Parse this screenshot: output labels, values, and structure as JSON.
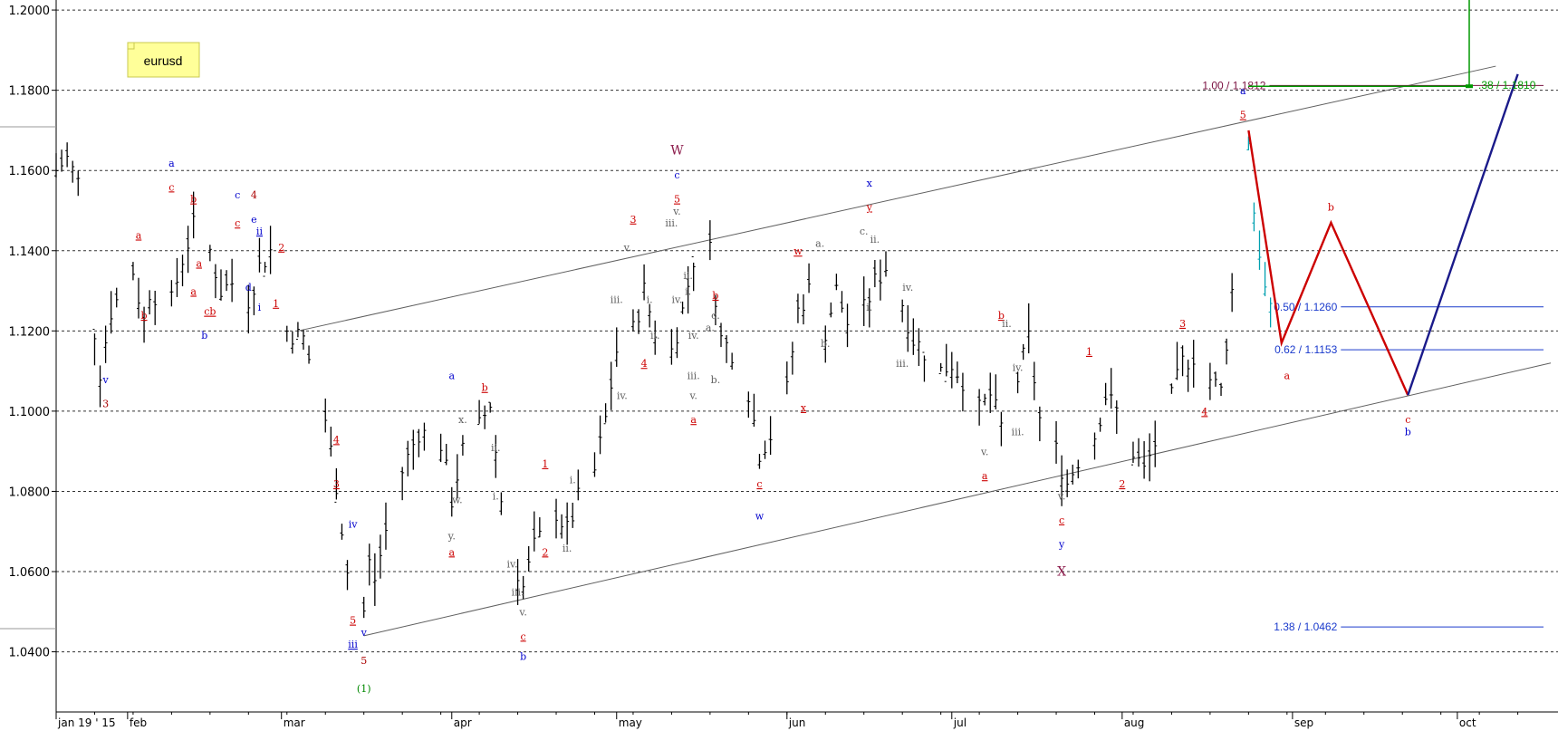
{
  "chart_data": {
    "type": "ohlc",
    "symbol_label": "eurusd",
    "y_axis": {
      "range": [
        1.025,
        1.2025
      ],
      "ticks": [
        "1.0400",
        "1.0600",
        "1.0800",
        "1.1000",
        "1.1200",
        "1.1400",
        "1.1600",
        "1.1800",
        "1.2000"
      ],
      "grid": "dashed horizontal"
    },
    "x_axis": {
      "range": [
        "2015-01-19",
        "2015-10-18"
      ],
      "ticks": [
        {
          "label": "jan 19 ' 15",
          "date": "2015-01-19"
        },
        {
          "label": "feb",
          "date": "2015-02-01"
        },
        {
          "label": "mar",
          "date": "2015-03-01"
        },
        {
          "label": "apr",
          "date": "2015-04-01"
        },
        {
          "label": "may",
          "date": "2015-05-01"
        },
        {
          "label": "jun",
          "date": "2015-06-01"
        },
        {
          "label": "jul",
          "date": "2015-07-01"
        },
        {
          "label": "aug",
          "date": "2015-08-01"
        },
        {
          "label": "sep",
          "date": "2015-09-01"
        },
        {
          "label": "oct",
          "date": "2015-10-01"
        }
      ]
    },
    "price_path": [
      [
        "2015-01-19",
        1.16
      ],
      [
        "2015-01-21",
        1.163
      ],
      [
        "2015-01-23",
        1.157
      ],
      [
        "2015-01-26",
        1.12
      ],
      [
        "2015-01-27",
        1.11
      ],
      [
        "2015-01-29",
        1.125
      ],
      [
        "2015-02-02",
        1.135
      ],
      [
        "2015-02-04",
        1.122
      ],
      [
        "2015-02-05",
        1.13
      ],
      [
        "2015-02-09",
        1.127
      ],
      [
        "2015-02-11",
        1.138
      ],
      [
        "2015-02-13",
        1.146
      ],
      [
        "2015-02-16",
        1.14
      ],
      [
        "2015-02-18",
        1.13
      ],
      [
        "2015-02-20",
        1.132
      ],
      [
        "2015-02-23",
        1.128
      ],
      [
        "2015-02-25",
        1.136
      ],
      [
        "2015-02-27",
        1.14
      ],
      [
        "2015-03-02",
        1.12
      ],
      [
        "2015-03-05",
        1.118
      ],
      [
        "2015-03-09",
        1.098
      ],
      [
        "2015-03-11",
        1.082
      ],
      [
        "2015-03-13",
        1.06
      ],
      [
        "2015-03-16",
        1.05
      ],
      [
        "2015-03-17",
        1.062
      ],
      [
        "2015-03-18",
        1.058
      ],
      [
        "2015-03-20",
        1.07
      ],
      [
        "2015-03-23",
        1.085
      ],
      [
        "2015-03-26",
        1.095
      ],
      [
        "2015-03-30",
        1.092
      ],
      [
        "2015-04-01",
        1.078
      ],
      [
        "2015-04-03",
        1.09
      ],
      [
        "2015-04-06",
        1.096
      ],
      [
        "2015-04-08",
        1.102
      ],
      [
        "2015-04-10",
        1.078
      ],
      [
        "2015-04-13",
        1.06
      ],
      [
        "2015-04-14",
        1.056
      ],
      [
        "2015-04-16",
        1.066
      ],
      [
        "2015-04-20",
        1.075
      ],
      [
        "2015-04-22",
        1.07
      ],
      [
        "2015-04-24",
        1.078
      ],
      [
        "2015-04-27",
        1.085
      ],
      [
        "2015-04-29",
        1.098
      ],
      [
        "2015-05-01",
        1.115
      ],
      [
        "2015-05-04",
        1.12
      ],
      [
        "2015-05-06",
        1.13
      ],
      [
        "2015-05-08",
        1.12
      ],
      [
        "2015-05-11",
        1.115
      ],
      [
        "2015-05-13",
        1.125
      ],
      [
        "2015-05-15",
        1.138
      ],
      [
        "2015-05-18",
        1.14
      ],
      [
        "2015-05-20",
        1.118
      ],
      [
        "2015-05-22",
        1.115
      ],
      [
        "2015-05-25",
        1.105
      ],
      [
        "2015-05-27",
        1.09
      ],
      [
        "2015-05-29",
        1.094
      ],
      [
        "2015-06-01",
        1.105
      ],
      [
        "2015-06-03",
        1.125
      ],
      [
        "2015-06-05",
        1.13
      ],
      [
        "2015-06-08",
        1.12
      ],
      [
        "2015-06-10",
        1.13
      ],
      [
        "2015-06-12",
        1.122
      ],
      [
        "2015-06-15",
        1.125
      ],
      [
        "2015-06-17",
        1.132
      ],
      [
        "2015-06-19",
        1.136
      ],
      [
        "2015-06-22",
        1.127
      ],
      [
        "2015-06-24",
        1.118
      ],
      [
        "2015-06-26",
        1.115
      ],
      [
        "2015-06-29",
        1.11
      ],
      [
        "2015-07-01",
        1.112
      ],
      [
        "2015-07-03",
        1.108
      ],
      [
        "2015-07-06",
        1.1
      ],
      [
        "2015-07-08",
        1.104
      ],
      [
        "2015-07-10",
        1.096
      ],
      [
        "2015-07-13",
        1.108
      ],
      [
        "2015-07-15",
        1.118
      ],
      [
        "2015-07-17",
        1.098
      ],
      [
        "2015-07-20",
        1.09
      ],
      [
        "2015-07-22",
        1.082
      ],
      [
        "2015-07-24",
        1.088
      ],
      [
        "2015-07-27",
        1.094
      ],
      [
        "2015-07-29",
        1.104
      ],
      [
        "2015-07-31",
        1.1
      ],
      [
        "2015-08-03",
        1.09
      ],
      [
        "2015-08-05",
        1.085
      ],
      [
        "2015-08-07",
        1.092
      ],
      [
        "2015-08-10",
        1.103
      ],
      [
        "2015-08-12",
        1.112
      ],
      [
        "2015-08-14",
        1.114
      ],
      [
        "2015-08-17",
        1.108
      ],
      [
        "2015-08-19",
        1.105
      ],
      [
        "2015-08-21",
        1.13
      ],
      [
        "2015-08-24",
        1.168
      ],
      [
        "2015-08-25",
        1.15
      ],
      [
        "2015-08-26",
        1.14
      ],
      [
        "2015-08-27",
        1.13
      ],
      [
        "2015-08-28",
        1.124
      ]
    ],
    "forecast_paths": [
      {
        "color": "#cc0000",
        "points": [
          [
            "2015-08-24",
            1.17
          ],
          [
            "2015-08-30",
            1.117
          ],
          [
            "2015-09-08",
            1.147
          ],
          [
            "2015-09-22",
            1.104
          ]
        ]
      },
      {
        "color": "#1a1a8a",
        "points": [
          [
            "2015-09-22",
            1.104
          ],
          [
            "2015-10-12",
            1.184
          ]
        ]
      }
    ],
    "channel_lines": [
      {
        "color": "#606060",
        "points": [
          [
            "2015-03-04",
            1.12
          ],
          [
            "2015-10-08",
            1.186
          ]
        ]
      },
      {
        "color": "#606060",
        "points": [
          [
            "2015-03-16",
            1.044
          ],
          [
            "2015-10-18",
            1.112
          ]
        ]
      }
    ],
    "fib_levels": [
      {
        "label": "1.00 / 1.1812",
        "value": 1.1812,
        "color": "#7a1040",
        "label_at": "2015-08-10"
      },
      {
        "label": "0.50 / 1.1260",
        "value": 1.126,
        "color": "#1a3acc",
        "label_at": "2015-08-23"
      },
      {
        "label": "0.62 / 1.1153",
        "value": 1.1153,
        "color": "#1a3acc",
        "label_at": "2015-08-23"
      },
      {
        "label": "1.38 / 1.0462",
        "value": 1.0462,
        "color": "#1a3acc",
        "label_at": "2015-08-23"
      }
    ],
    "top_right_marker": {
      "label": ".38 / 1.1810",
      "value": 1.181,
      "color": "#009900"
    },
    "wave_labels": [
      {
        "t": "3",
        "d": "2015-01-28",
        "y": 1.101,
        "c": "#aa0000"
      },
      {
        "t": "v",
        "d": "2015-01-28",
        "y": 1.107,
        "c": "#0000cc"
      },
      {
        "t": "b",
        "d": "2015-02-04",
        "y": 1.123,
        "c": "#cc0000",
        "u": true
      },
      {
        "t": "a",
        "d": "2015-02-03",
        "y": 1.143,
        "c": "#cc0000",
        "u": true
      },
      {
        "t": "a",
        "d": "2015-02-09",
        "y": 1.161,
        "c": "#0000cc"
      },
      {
        "t": "c",
        "d": "2015-02-09",
        "y": 1.155,
        "c": "#cc0000",
        "u": true
      },
      {
        "t": "b",
        "d": "2015-02-13",
        "y": 1.152,
        "c": "#cc0000",
        "u": true
      },
      {
        "t": "a",
        "d": "2015-02-13",
        "y": 1.129,
        "c": "#cc0000",
        "u": true
      },
      {
        "t": "a",
        "d": "2015-02-14",
        "y": 1.136,
        "c": "#cc0000",
        "u": true
      },
      {
        "t": "cb",
        "d": "2015-02-16",
        "y": 1.124,
        "c": "#cc0000",
        "u": true
      },
      {
        "t": "b",
        "d": "2015-02-15",
        "y": 1.118,
        "c": "#0000cc"
      },
      {
        "t": "c",
        "d": "2015-02-21",
        "y": 1.153,
        "c": "#0000cc"
      },
      {
        "t": "c",
        "d": "2015-02-21",
        "y": 1.146,
        "c": "#cc0000",
        "u": true
      },
      {
        "t": "4",
        "d": "2015-02-24",
        "y": 1.153,
        "c": "#aa0000"
      },
      {
        "t": "e",
        "d": "2015-02-24",
        "y": 1.147,
        "c": "#0000cc"
      },
      {
        "t": "ii",
        "d": "2015-02-25",
        "y": 1.144,
        "c": "#0000cc",
        "u": true
      },
      {
        "t": "d",
        "d": "2015-02-23",
        "y": 1.13,
        "c": "#0000cc"
      },
      {
        "t": "i",
        "d": "2015-02-25",
        "y": 1.125,
        "c": "#0000cc"
      },
      {
        "t": "1",
        "d": "2015-02-28",
        "y": 1.126,
        "c": "#cc0000",
        "u": true
      },
      {
        "t": "2",
        "d": "2015-03-01",
        "y": 1.14,
        "c": "#cc0000",
        "u": true
      },
      {
        "t": "4",
        "d": "2015-03-11",
        "y": 1.092,
        "c": "#cc0000",
        "u": true
      },
      {
        "t": "3",
        "d": "2015-03-11",
        "y": 1.081,
        "c": "#cc0000",
        "u": true
      },
      {
        "t": "iv",
        "d": "2015-03-14",
        "y": 1.071,
        "c": "#0000cc"
      },
      {
        "t": "5",
        "d": "2015-03-14",
        "y": 1.047,
        "c": "#cc0000",
        "u": true
      },
      {
        "t": "iii",
        "d": "2015-03-14",
        "y": 1.041,
        "c": "#0000cc",
        "u": true
      },
      {
        "t": "v",
        "d": "2015-03-16",
        "y": 1.044,
        "c": "#0000cc"
      },
      {
        "t": "5",
        "d": "2015-03-16",
        "y": 1.037,
        "c": "#aa0000"
      },
      {
        "t": "(1)",
        "d": "2015-03-16",
        "y": 1.03,
        "c": "#008800"
      },
      {
        "t": "a",
        "d": "2015-04-01",
        "y": 1.108,
        "c": "#0000cc"
      },
      {
        "t": "x.",
        "d": "2015-04-03",
        "y": 1.097,
        "c": "#606060"
      },
      {
        "t": "w.",
        "d": "2015-04-02",
        "y": 1.077,
        "c": "#606060"
      },
      {
        "t": "y.",
        "d": "2015-04-01",
        "y": 1.068,
        "c": "#606060"
      },
      {
        "t": "a",
        "d": "2015-04-01",
        "y": 1.064,
        "c": "#cc0000",
        "u": true
      },
      {
        "t": "b",
        "d": "2015-04-07",
        "y": 1.105,
        "c": "#cc0000",
        "u": true
      },
      {
        "t": "ii.",
        "d": "2015-04-09",
        "y": 1.09,
        "c": "#606060"
      },
      {
        "t": "i.",
        "d": "2015-04-09",
        "y": 1.078,
        "c": "#606060"
      },
      {
        "t": "iv.",
        "d": "2015-04-12",
        "y": 1.061,
        "c": "#606060"
      },
      {
        "t": "iii.",
        "d": "2015-04-13",
        "y": 1.054,
        "c": "#606060"
      },
      {
        "t": "v.",
        "d": "2015-04-14",
        "y": 1.049,
        "c": "#606060"
      },
      {
        "t": "c",
        "d": "2015-04-14",
        "y": 1.043,
        "c": "#cc0000",
        "u": true
      },
      {
        "t": "b",
        "d": "2015-04-14",
        "y": 1.038,
        "c": "#0000cc"
      },
      {
        "t": "1",
        "d": "2015-04-18",
        "y": 1.086,
        "c": "#cc0000",
        "u": true
      },
      {
        "t": "i.",
        "d": "2015-04-23",
        "y": 1.082,
        "c": "#606060"
      },
      {
        "t": "2",
        "d": "2015-04-18",
        "y": 1.064,
        "c": "#cc0000",
        "u": true
      },
      {
        "t": "ii.",
        "d": "2015-04-22",
        "y": 1.065,
        "c": "#606060"
      },
      {
        "t": "iii.",
        "d": "2015-05-01",
        "y": 1.127,
        "c": "#606060"
      },
      {
        "t": "iv.",
        "d": "2015-05-02",
        "y": 1.103,
        "c": "#606060"
      },
      {
        "t": "v.",
        "d": "2015-05-03",
        "y": 1.14,
        "c": "#606060"
      },
      {
        "t": "3",
        "d": "2015-05-04",
        "y": 1.147,
        "c": "#cc0000",
        "u": true
      },
      {
        "t": "4",
        "d": "2015-05-06",
        "y": 1.111,
        "c": "#cc0000",
        "u": true
      },
      {
        "t": "i.",
        "d": "2015-05-07",
        "y": 1.127,
        "c": "#606060"
      },
      {
        "t": "ii.",
        "d": "2015-05-08",
        "y": 1.118,
        "c": "#606060"
      },
      {
        "t": "iii.",
        "d": "2015-05-11",
        "y": 1.146,
        "c": "#606060"
      },
      {
        "t": "iv.",
        "d": "2015-05-12",
        "y": 1.127,
        "c": "#606060"
      },
      {
        "t": "v.",
        "d": "2015-05-12",
        "y": 1.149,
        "c": "#606060"
      },
      {
        "t": "W",
        "d": "2015-05-12",
        "y": 1.164,
        "c": "#8b1a4a",
        "big": true
      },
      {
        "t": "c",
        "d": "2015-05-12",
        "y": 1.158,
        "c": "#0000cc"
      },
      {
        "t": "5",
        "d": "2015-05-12",
        "y": 1.152,
        "c": "#cc0000",
        "u": true
      },
      {
        "t": "ii.",
        "d": "2015-05-14",
        "y": 1.133,
        "c": "#606060"
      },
      {
        "t": "i.",
        "d": "2015-05-14",
        "y": 1.129,
        "c": "#606060"
      },
      {
        "t": "iv.",
        "d": "2015-05-15",
        "y": 1.118,
        "c": "#606060"
      },
      {
        "t": "iii.",
        "d": "2015-05-15",
        "y": 1.108,
        "c": "#606060"
      },
      {
        "t": "v.",
        "d": "2015-05-15",
        "y": 1.103,
        "c": "#606060"
      },
      {
        "t": "a.",
        "d": "2015-05-18",
        "y": 1.12,
        "c": "#606060"
      },
      {
        "t": "c.",
        "d": "2015-05-19",
        "y": 1.123,
        "c": "#606060"
      },
      {
        "t": "b.",
        "d": "2015-05-19",
        "y": 1.107,
        "c": "#606060"
      },
      {
        "t": "b",
        "d": "2015-05-19",
        "y": 1.128,
        "c": "#cc0000",
        "u": true
      },
      {
        "t": "a",
        "d": "2015-05-15",
        "y": 1.097,
        "c": "#cc0000",
        "u": true
      },
      {
        "t": "c",
        "d": "2015-05-27",
        "y": 1.081,
        "c": "#cc0000",
        "u": true
      },
      {
        "t": "w",
        "d": "2015-05-27",
        "y": 1.073,
        "c": "#0000cc"
      },
      {
        "t": "w",
        "d": "2015-06-03",
        "y": 1.139,
        "c": "#cc0000",
        "u": true
      },
      {
        "t": "x",
        "d": "2015-06-04",
        "y": 1.1,
        "c": "#cc0000",
        "u": true
      },
      {
        "t": "a.",
        "d": "2015-06-07",
        "y": 1.141,
        "c": "#606060"
      },
      {
        "t": "b.",
        "d": "2015-06-08",
        "y": 1.116,
        "c": "#606060"
      },
      {
        "t": "c.",
        "d": "2015-06-15",
        "y": 1.144,
        "c": "#606060"
      },
      {
        "t": "ii.",
        "d": "2015-06-17",
        "y": 1.142,
        "c": "#606060"
      },
      {
        "t": "i.",
        "d": "2015-06-16",
        "y": 1.125,
        "c": "#606060"
      },
      {
        "t": "x",
        "d": "2015-06-16",
        "y": 1.156,
        "c": "#0000cc"
      },
      {
        "t": "y",
        "d": "2015-06-16",
        "y": 1.15,
        "c": "#cc0000",
        "u": true
      },
      {
        "t": "iv.",
        "d": "2015-06-23",
        "y": 1.13,
        "c": "#606060"
      },
      {
        "t": "iii.",
        "d": "2015-06-22",
        "y": 1.111,
        "c": "#606060"
      },
      {
        "t": "v.",
        "d": "2015-07-07",
        "y": 1.089,
        "c": "#606060"
      },
      {
        "t": "a",
        "d": "2015-07-07",
        "y": 1.083,
        "c": "#cc0000",
        "u": true
      },
      {
        "t": "b",
        "d": "2015-07-10",
        "y": 1.123,
        "c": "#cc0000",
        "u": true
      },
      {
        "t": "ii.",
        "d": "2015-07-11",
        "y": 1.121,
        "c": "#606060"
      },
      {
        "t": "iv.",
        "d": "2015-07-13",
        "y": 1.11,
        "c": "#606060"
      },
      {
        "t": "iii.",
        "d": "2015-07-13",
        "y": 1.094,
        "c": "#606060"
      },
      {
        "t": "v.",
        "d": "2015-07-21",
        "y": 1.078,
        "c": "#606060"
      },
      {
        "t": "c",
        "d": "2015-07-21",
        "y": 1.072,
        "c": "#cc0000",
        "u": true
      },
      {
        "t": "y",
        "d": "2015-07-21",
        "y": 1.066,
        "c": "#0000cc"
      },
      {
        "t": "X",
        "d": "2015-07-21",
        "y": 1.059,
        "c": "#8b1a4a",
        "big": true
      },
      {
        "t": "1",
        "d": "2015-07-26",
        "y": 1.114,
        "c": "#cc0000",
        "u": true
      },
      {
        "t": "2",
        "d": "2015-08-01",
        "y": 1.081,
        "c": "#cc0000",
        "u": true
      },
      {
        "t": "3",
        "d": "2015-08-12",
        "y": 1.121,
        "c": "#cc0000",
        "u": true
      },
      {
        "t": "4",
        "d": "2015-08-16",
        "y": 1.099,
        "c": "#cc0000",
        "u": true
      },
      {
        "t": "5",
        "d": "2015-08-23",
        "y": 1.173,
        "c": "#cc0000",
        "u": true
      },
      {
        "t": "a",
        "d": "2015-08-23",
        "y": 1.179,
        "c": "#0000cc"
      },
      {
        "t": "a",
        "d": "2015-08-31",
        "y": 1.108,
        "c": "#cc0000"
      },
      {
        "t": "b",
        "d": "2015-09-08",
        "y": 1.15,
        "c": "#cc0000"
      },
      {
        "t": "c",
        "d": "2015-09-22",
        "y": 1.097,
        "c": "#cc0000"
      },
      {
        "t": "b",
        "d": "2015-09-22",
        "y": 1.094,
        "c": "#0000cc"
      }
    ]
  }
}
